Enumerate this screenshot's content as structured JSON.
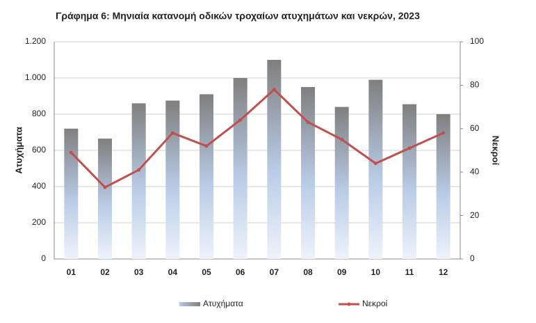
{
  "chart_data": {
    "type": "bar-line",
    "title": "Γράφημα 6: Μηνιαία κατανομή οδικών τροχαίων ατυχημάτων και νεκρών, 2023",
    "y_label": "Ατυχήματα",
    "y2_label": "Νεκροί",
    "categories": [
      "01",
      "02",
      "03",
      "04",
      "05",
      "06",
      "07",
      "08",
      "09",
      "10",
      "11",
      "12"
    ],
    "series": [
      {
        "name": "Ατυχήματα",
        "type": "bar",
        "color": "#7f7f7f",
        "values": [
          720,
          665,
          860,
          875,
          910,
          1000,
          1100,
          950,
          840,
          990,
          855,
          800
        ]
      },
      {
        "name": "Νεκροί",
        "type": "line",
        "axis": "y2",
        "color": "#c0504d",
        "values": [
          49,
          33,
          41,
          58,
          52,
          64,
          78,
          63,
          55,
          44,
          51,
          58
        ]
      }
    ],
    "ylim": [
      0,
      1200
    ],
    "yticks": [
      0,
      200,
      400,
      600,
      800,
      {
        "value": 1000,
        "label": "1.000"
      },
      {
        "value": 1200,
        "label": "1.200"
      }
    ],
    "y2lim": [
      0,
      100
    ],
    "y2ticks": [
      0,
      20,
      40,
      60,
      80,
      100
    ],
    "grid": true,
    "legend": "bottom"
  }
}
